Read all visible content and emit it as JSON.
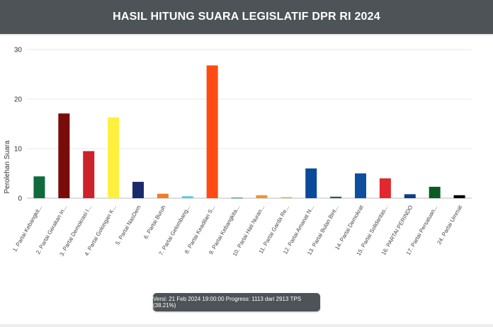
{
  "header": {
    "title": "HASIL HITUNG SUARA LEGISLATIF DPR RI 2024"
  },
  "footer": {
    "version_text": "Versi: 21 Feb 2024 19:00:00 Progress: 1113 dari 2913 TPS (38.21%)"
  },
  "chart_data": {
    "type": "bar",
    "title": "HASIL HITUNG SUARA LEGISLATIF DPR RI 2024",
    "xlabel": "",
    "ylabel": "Perolehan Suara",
    "ylim": [
      0,
      30
    ],
    "yticks": [
      "0",
      "10",
      "20",
      "30"
    ],
    "grid": true,
    "legend": "none",
    "categories": [
      "1. Partai Kebangkit...",
      "2. Partai Gerakan In...",
      "3. Partai Demokrasi I...",
      "4. Partai Golongan K...",
      "5. Partai NasDem",
      "6. Partai Buruh",
      "7. Partai Gelombang...",
      "8. Partai Keadilan S...",
      "9. Partai Kebangkita...",
      "10. Partai Hati Nuran...",
      "11. Partai Garda Re...",
      "12. Partai Amanat N...",
      "13. Partai Bulan Bint...",
      "14. Partai Demokrat",
      "15. Partai Solidaritas...",
      "16. PARTAI PERINDO",
      "17. Partai Persatuan...",
      "24. Partai Ummat"
    ],
    "values": [
      4.4,
      17.1,
      9.5,
      16.3,
      3.3,
      0.9,
      0.4,
      26.8,
      0.1,
      0.6,
      0.2,
      6.0,
      0.3,
      5.0,
      4.0,
      0.8,
      2.3,
      0.6
    ],
    "colors": [
      "#0f6b3c",
      "#7a0b0b",
      "#cc2229",
      "#fef03c",
      "#1a2a6c",
      "#f07e26",
      "#5bc8e8",
      "#ff4b13",
      "#1a7a3e",
      "#f29130",
      "#f2a23a",
      "#0a4a9a",
      "#0b6b2f",
      "#0e4e9e",
      "#e0282e",
      "#0c3e8a",
      "#0a5a24",
      "#000000"
    ]
  }
}
